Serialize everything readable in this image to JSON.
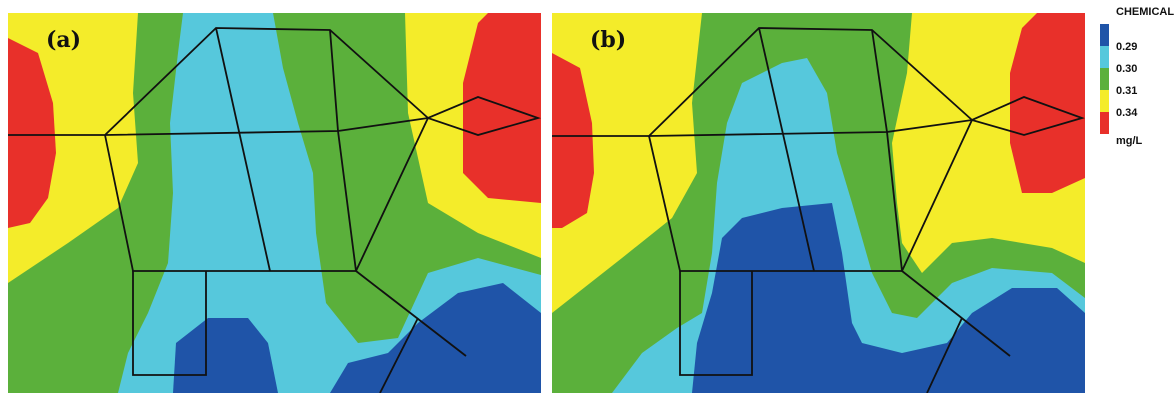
{
  "panels": [
    {
      "id": "a",
      "label": "(a)"
    },
    {
      "id": "b",
      "label": "(b)"
    }
  ],
  "legend": {
    "title": "CHEMICAL",
    "levels": [
      {
        "label": "",
        "color": "#1f54a8"
      },
      {
        "label": "0.29",
        "color": "#56c8dc"
      },
      {
        "label": "0.30",
        "color": "#5bb03b"
      },
      {
        "label": "0.31",
        "color": "#f4ec2a"
      },
      {
        "label": "0.34",
        "color": "#e8302a"
      }
    ],
    "unit": "mg/L"
  },
  "colors": {
    "dark_blue": "#1f54a8",
    "light_blue": "#56c8dc",
    "green": "#5bb03b",
    "yellow": "#f4ec2a",
    "red": "#e8302a",
    "network_lines": "#111111"
  }
}
